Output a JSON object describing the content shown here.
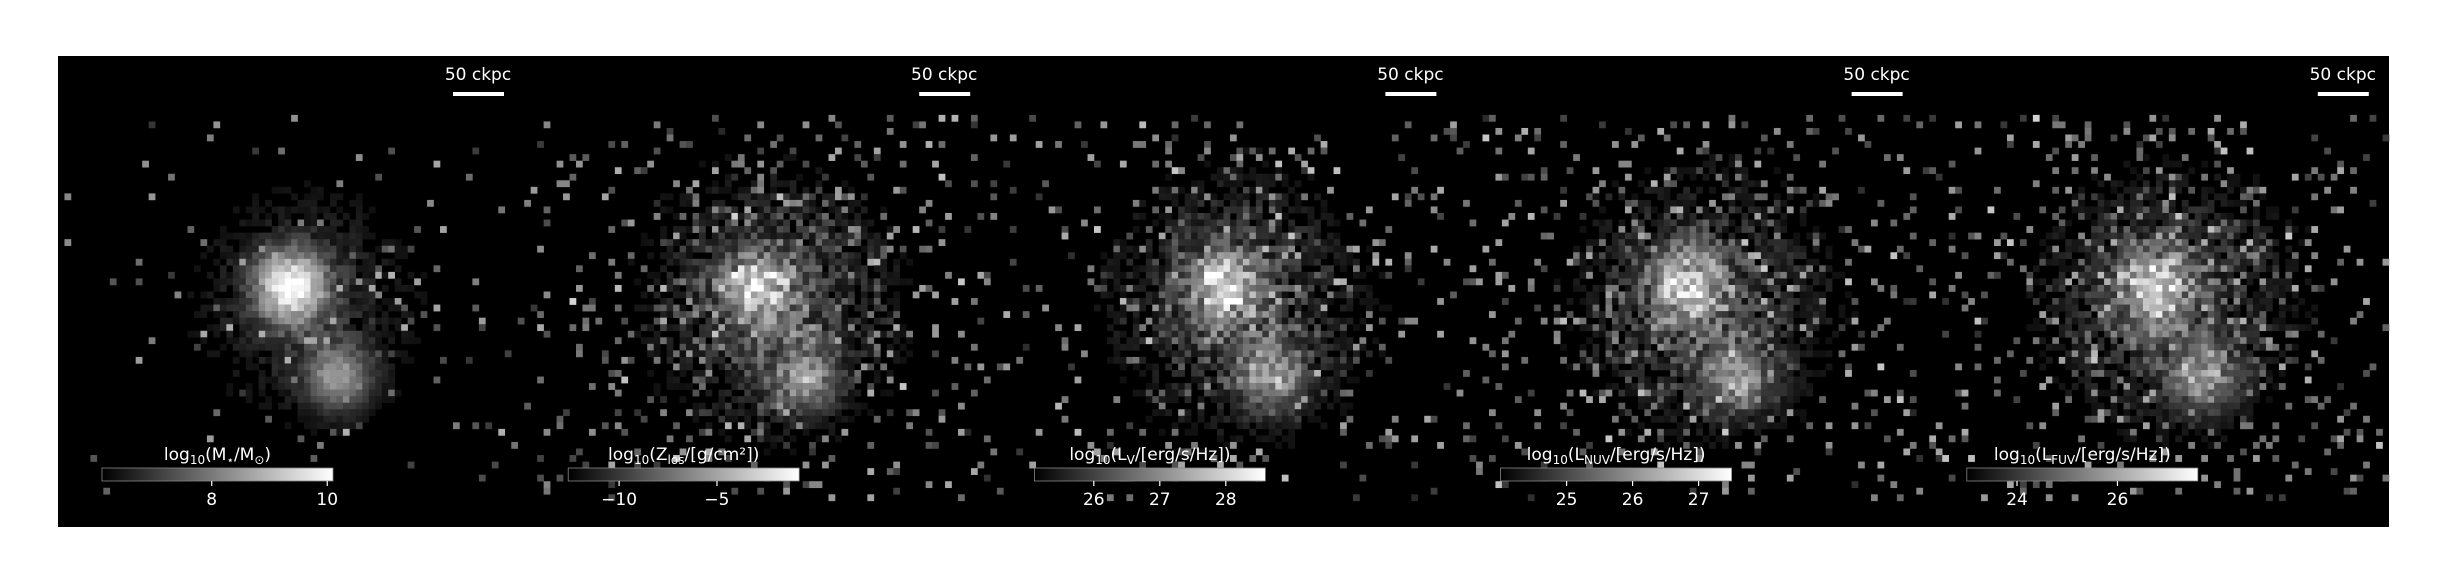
{
  "chart_data": [
    {
      "type": "image",
      "scale_label": "50 ckpc",
      "label_parts": [
        {
          "text": "log"
        },
        {
          "text": "10",
          "sub": true
        },
        {
          "text": "(M"
        },
        {
          "text": "⋆",
          "sub": true
        },
        {
          "text": "/M"
        },
        {
          "text": "⊙",
          "sub": true
        },
        {
          "text": ")"
        }
      ],
      "clim": [
        6.1,
        10.1
      ],
      "cticks": [
        8,
        10
      ]
    },
    {
      "type": "image",
      "scale_label": "50 ckpc",
      "label_parts": [
        {
          "text": "log"
        },
        {
          "text": "10",
          "sub": true
        },
        {
          "text": "(Z"
        },
        {
          "text": "los",
          "sub": true
        },
        {
          "text": "/[g/cm²])"
        }
      ],
      "clim": [
        -12.6,
        -0.8
      ],
      "cticks": [
        {
          "value": -10,
          "label": "−10"
        },
        {
          "value": -5,
          "label": "−5"
        }
      ]
    },
    {
      "type": "image",
      "scale_label": "50 ckpc",
      "label_parts": [
        {
          "text": "log"
        },
        {
          "text": "10",
          "sub": true
        },
        {
          "text": "(L"
        },
        {
          "text": "V",
          "sub": true
        },
        {
          "text": "/[erg/s/Hz])"
        }
      ],
      "clim": [
        25.1,
        28.6
      ],
      "cticks": [
        26,
        27,
        28
      ]
    },
    {
      "type": "image",
      "scale_label": "50 ckpc",
      "label_parts": [
        {
          "text": "log"
        },
        {
          "text": "10",
          "sub": true
        },
        {
          "text": "(L"
        },
        {
          "text": "NUV",
          "sub": true
        },
        {
          "text": "/[erg/s/Hz])"
        }
      ],
      "clim": [
        24.0,
        27.5
      ],
      "cticks": [
        25,
        26,
        27
      ]
    },
    {
      "type": "image",
      "scale_label": "50 ckpc",
      "label_parts": [
        {
          "text": "log"
        },
        {
          "text": "10",
          "sub": true
        },
        {
          "text": "(L"
        },
        {
          "text": "FUV",
          "sub": true
        },
        {
          "text": "/[erg/s/Hz])"
        }
      ],
      "clim": [
        23.0,
        27.6
      ],
      "cticks": [
        24,
        26
      ]
    }
  ]
}
